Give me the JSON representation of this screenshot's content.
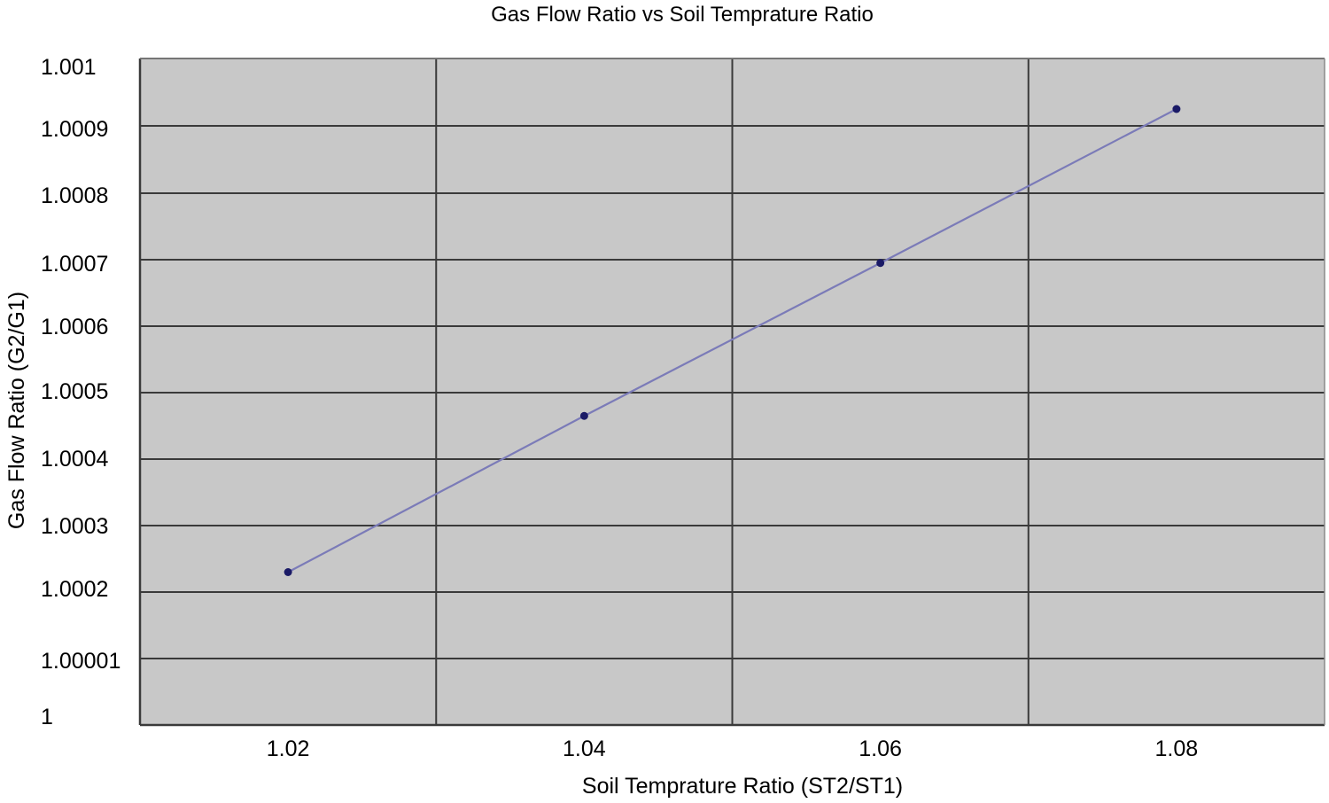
{
  "chart_data": {
    "type": "line",
    "title": "Gas Flow Ratio vs Soil Temprature Ratio",
    "xlabel": "Soil Temprature Ratio (ST2/ST1)",
    "ylabel": "Gas Flow Ratio (G2/G1)",
    "xlim": [
      1.01,
      1.09
    ],
    "x_ticks": [
      1.02,
      1.04,
      1.06,
      1.08
    ],
    "x_tick_labels": [
      "1.02",
      "1.04",
      "1.06",
      "1.08"
    ],
    "x_gridlines": [
      1.03,
      1.05,
      1.07
    ],
    "y_tick_labels": [
      "1",
      "1.00001",
      "1.0002",
      "1.0003",
      "1.0004",
      "1.0005",
      "1.0006",
      "1.0007",
      "1.0008",
      "1.0009",
      "1.001"
    ],
    "grid": true,
    "legend": "none",
    "colors": {
      "plot_bg": "#c8c8c8",
      "grid": "#3a3a3a",
      "series": "#7b7bb8",
      "marker": "#1a1a66"
    },
    "series": [
      {
        "name": "Gas Flow Ratio",
        "x": [
          1.02,
          1.04,
          1.06,
          1.08
        ],
        "y": [
          1.00023,
          1.000465,
          1.000695,
          1.000925
        ]
      }
    ]
  }
}
